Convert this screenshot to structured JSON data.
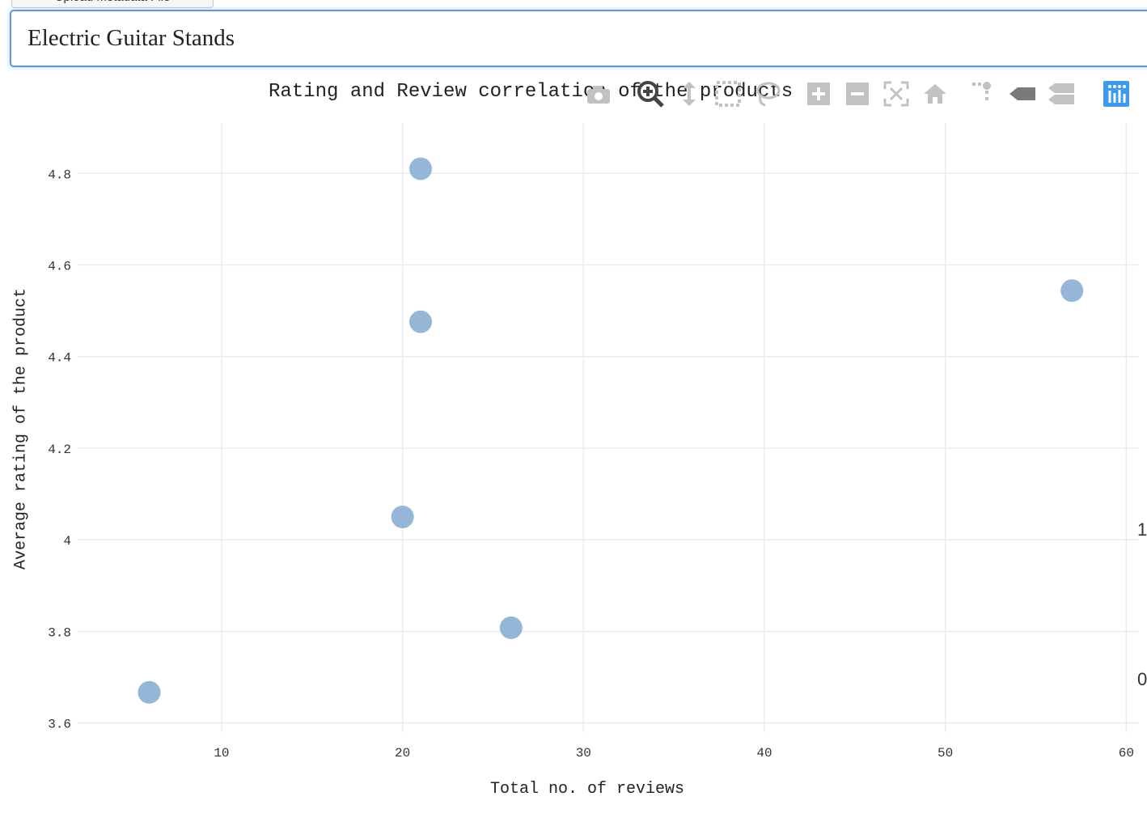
{
  "controls": {
    "upload_button_label": "Upload Metadata File",
    "dataset_value": "Electric Guitar Stands"
  },
  "modebar": {
    "buttons": [
      {
        "name": "camera-icon",
        "label": "Download plot as png"
      },
      {
        "name": "zoom-icon",
        "label": "Zoom"
      },
      {
        "name": "pan-icon",
        "label": "Pan"
      },
      {
        "name": "box-select-icon",
        "label": "Box Select"
      },
      {
        "name": "lasso-select-icon",
        "label": "Lasso Select"
      },
      {
        "name": "zoom-in-icon",
        "label": "Zoom in"
      },
      {
        "name": "zoom-out-icon",
        "label": "Zoom out"
      },
      {
        "name": "autoscale-icon",
        "label": "Autoscale"
      },
      {
        "name": "home-icon",
        "label": "Reset axes"
      },
      {
        "name": "spike-lines-icon",
        "label": "Toggle Spike Lines"
      },
      {
        "name": "hover-closest-icon",
        "label": "Show closest data on hover"
      },
      {
        "name": "hover-compare-icon",
        "label": "Compare data on hover"
      },
      {
        "name": "plotly-logo-icon",
        "label": "Produced with Plotly"
      }
    ],
    "active_color": "#444444",
    "inactive_color": "#c2c2c2",
    "logo_color": "#3d9be9"
  },
  "edge_labels": {
    "upper": "1",
    "lower": "0"
  },
  "chart_data": {
    "type": "scatter",
    "title": "Rating and Review correlation of the products",
    "xlabel": "Total no. of reviews",
    "ylabel": "Average rating of the product",
    "x_ticks": [
      10,
      20,
      30,
      40,
      50,
      60
    ],
    "y_ticks": [
      3.6,
      3.8,
      4,
      4.2,
      4.4,
      4.6,
      4.8
    ],
    "x_tick_labels": [
      "10",
      "20",
      "30",
      "40",
      "50",
      "60"
    ],
    "y_tick_labels": [
      "3.6",
      "3.8",
      "4",
      "4.2",
      "4.4",
      "4.6",
      "4.8"
    ],
    "xlim": [
      2,
      60.7
    ],
    "ylim": [
      3.58,
      4.91
    ],
    "grid": true,
    "marker_color": "#8aaed2",
    "points": [
      {
        "x": 6,
        "y": 3.667
      },
      {
        "x": 20,
        "y": 4.05
      },
      {
        "x": 21,
        "y": 4.81
      },
      {
        "x": 21,
        "y": 4.476
      },
      {
        "x": 26,
        "y": 3.808
      },
      {
        "x": 57,
        "y": 4.544
      }
    ]
  }
}
